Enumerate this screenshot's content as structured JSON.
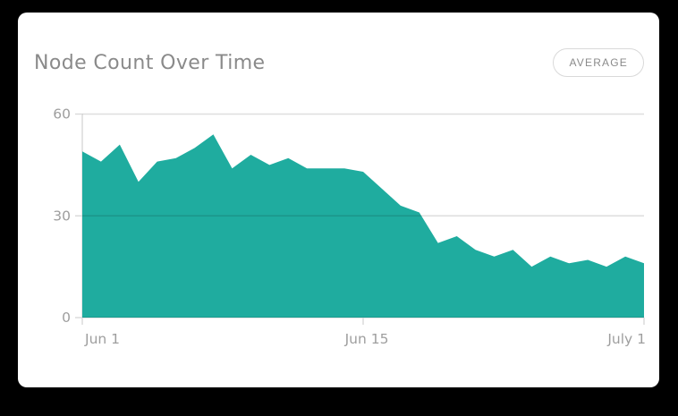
{
  "card": {
    "title": "Node Count Over Time",
    "average_button_label": "AVERAGE"
  },
  "colors": {
    "area_fill": "#1FAC9F",
    "card_background": "#FFFFFF",
    "title_text": "#8A8A8A",
    "axis_label_text": "#9E9E9E",
    "button_text": "#8A8A8A",
    "button_border": "#D9D9D9",
    "gridline_overlay": "rgba(0,0,0,0.13)",
    "axis_line": "#D9D9D9"
  },
  "chart_data": {
    "type": "area",
    "title": "Node Count Over Time",
    "x_tick_labels": [
      "Jun 1",
      "Jun 15",
      "July 1"
    ],
    "y_ticks": [
      0,
      30,
      60
    ],
    "ylim": [
      0,
      60
    ],
    "grid": true,
    "legend": "none",
    "series": [
      {
        "name": "Node Count",
        "values": [
          49,
          46,
          51,
          40,
          46,
          47,
          50,
          54,
          44,
          48,
          45,
          47,
          44,
          44,
          44,
          43,
          38,
          33,
          31,
          22,
          24,
          20,
          18,
          20,
          15,
          18,
          16,
          17,
          15,
          18,
          16
        ]
      }
    ]
  }
}
